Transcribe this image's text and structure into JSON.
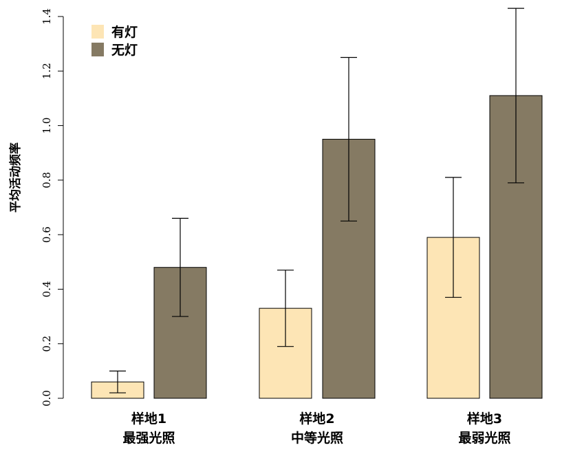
{
  "chart_data": {
    "type": "bar",
    "title": "",
    "xlabel": "",
    "ylabel": "平均活动频率",
    "ylim": [
      0,
      1.4
    ],
    "yticks": [
      "0.0",
      "0.2",
      "0.4",
      "0.6",
      "0.8",
      "1.0",
      "1.2",
      "1.4"
    ],
    "categories": [
      {
        "line1": "样地1",
        "line2": "最强光照"
      },
      {
        "line1": "样地2",
        "line2": "中等光照"
      },
      {
        "line1": "样地3",
        "line2": "最弱光照"
      }
    ],
    "series": [
      {
        "name": "有灯",
        "color": "#fde5b5",
        "values": [
          0.06,
          0.33,
          0.59
        ],
        "err_low": [
          0.02,
          0.19,
          0.37
        ],
        "err_high": [
          0.1,
          0.47,
          0.81
        ]
      },
      {
        "name": "无灯",
        "color": "#857a63",
        "values": [
          0.48,
          0.95,
          1.11
        ],
        "err_low": [
          0.3,
          0.65,
          0.79
        ],
        "err_high": [
          0.66,
          1.25,
          1.43
        ]
      }
    ],
    "legend_position": "top-left"
  }
}
